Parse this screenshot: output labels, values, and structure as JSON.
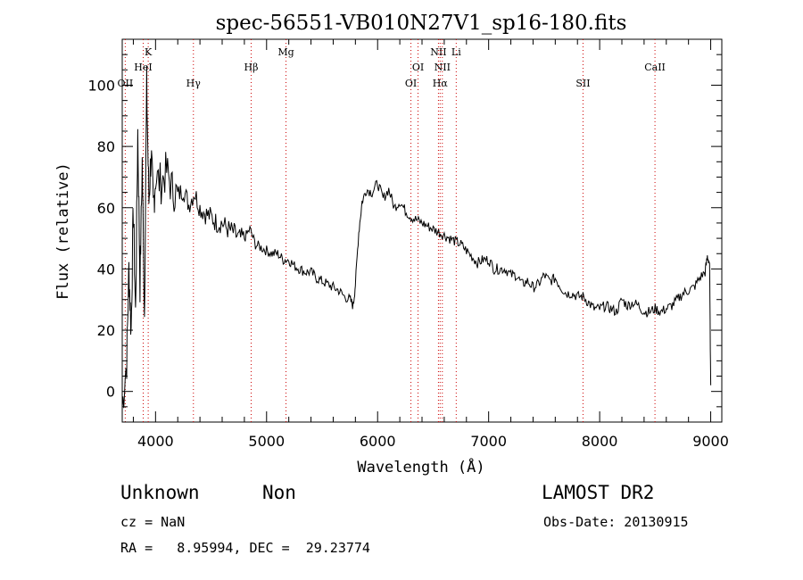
{
  "chart_data": {
    "type": "line",
    "title": "spec-56551-VB010N27V1_sp16-180.fits",
    "xlabel": "Wavelength (Å)",
    "ylabel": "Flux (relative)",
    "xlim": [
      3700,
      9100
    ],
    "ylim": [
      -10,
      115
    ],
    "x_ticks": [
      4000,
      5000,
      6000,
      7000,
      8000,
      9000
    ],
    "y_ticks": [
      0,
      20,
      40,
      60,
      80,
      100
    ],
    "grid": false,
    "series": [
      {
        "x": [
          3700,
          3740,
          3760,
          3780,
          3800,
          3820,
          3840,
          3860,
          3880,
          3900,
          3920,
          3940,
          3960,
          3980,
          4000,
          4050,
          4100,
          4150,
          4200,
          4250,
          4300,
          4350,
          4400,
          4450,
          4500,
          4550,
          4600,
          4650,
          4700,
          4750,
          4800,
          4850,
          4900,
          4950,
          5000,
          5050,
          5100,
          5150,
          5200,
          5250,
          5300,
          5350,
          5400,
          5450,
          5500,
          5550,
          5600,
          5650,
          5700,
          5750,
          5780,
          5800,
          5830,
          5860,
          5900,
          5950,
          6000,
          6050,
          6100,
          6150,
          6200,
          6250,
          6300,
          6350,
          6400,
          6450,
          6500,
          6550,
          6600,
          6650,
          6700,
          6750,
          6800,
          6850,
          6900,
          6950,
          7000,
          7050,
          7100,
          7150,
          7200,
          7250,
          7300,
          7350,
          7400,
          7450,
          7500,
          7550,
          7600,
          7650,
          7700,
          7750,
          7800,
          7850,
          7900,
          7950,
          8000,
          8050,
          8100,
          8150,
          8200,
          8250,
          8300,
          8350,
          8400,
          8450,
          8500,
          8550,
          8600,
          8650,
          8700,
          8750,
          8800,
          8850,
          8900,
          8950,
          8970,
          8990,
          9000
        ],
        "y": [
          -5,
          10,
          40,
          20,
          60,
          25,
          85,
          35,
          75,
          25,
          100,
          62,
          78,
          60,
          70,
          68,
          72,
          66,
          64,
          66,
          61,
          65,
          60,
          58,
          57,
          55,
          55,
          53,
          52,
          50,
          50,
          53,
          48,
          47,
          46,
          45,
          45,
          43,
          43,
          41,
          40,
          39,
          39,
          37,
          36,
          35,
          34,
          33,
          31,
          30,
          28,
          35,
          52,
          62,
          66,
          65,
          68,
          63,
          66,
          60,
          62,
          59,
          57,
          56,
          55,
          54,
          53,
          52,
          51,
          50,
          49,
          48,
          46,
          44,
          42,
          43,
          43,
          40,
          40,
          40,
          38,
          38,
          35,
          36,
          34,
          35,
          38,
          36,
          37,
          34,
          32,
          32,
          31,
          31,
          29,
          27,
          27,
          28,
          27,
          26,
          30,
          28,
          29,
          28,
          26,
          26,
          27,
          26,
          27,
          28,
          30,
          32,
          33,
          34,
          37,
          39,
          44,
          42,
          2
        ]
      }
    ],
    "spectral_lines": [
      {
        "label": "OII",
        "x": 3727,
        "tier": 3
      },
      {
        "label": "K",
        "x": 3934,
        "tier": 1
      },
      {
        "label": "HeI",
        "x": 3889,
        "tier": 2
      },
      {
        "label": "Hγ",
        "x": 4341,
        "tier": 3
      },
      {
        "label": "Hβ",
        "x": 4861,
        "tier": 2
      },
      {
        "label": "Mg",
        "x": 5175,
        "tier": 1
      },
      {
        "label": "OI",
        "x": 6300,
        "tier": 3
      },
      {
        "label": "OI",
        "x": 6364,
        "tier": 2
      },
      {
        "label": "NII",
        "x": 6548,
        "tier": 1
      },
      {
        "label": "Hα",
        "x": 6563,
        "tier": 3
      },
      {
        "label": "NII",
        "x": 6583,
        "tier": 2
      },
      {
        "label": "Li",
        "x": 6708,
        "tier": 1
      },
      {
        "label": "SII",
        "x": 7850,
        "tier": 3
      },
      {
        "label": "CaII",
        "x": 8498,
        "tier": 2
      }
    ],
    "line_color": "#cc0000"
  },
  "footer": {
    "class_label": "Unknown",
    "subclass_label": "Non",
    "survey_label": "LAMOST DR2",
    "cz_text": "cz = NaN",
    "obs_date_text": "Obs-Date: 20130915",
    "radec_text": "RA =   8.95994, DEC =  29.23774"
  }
}
